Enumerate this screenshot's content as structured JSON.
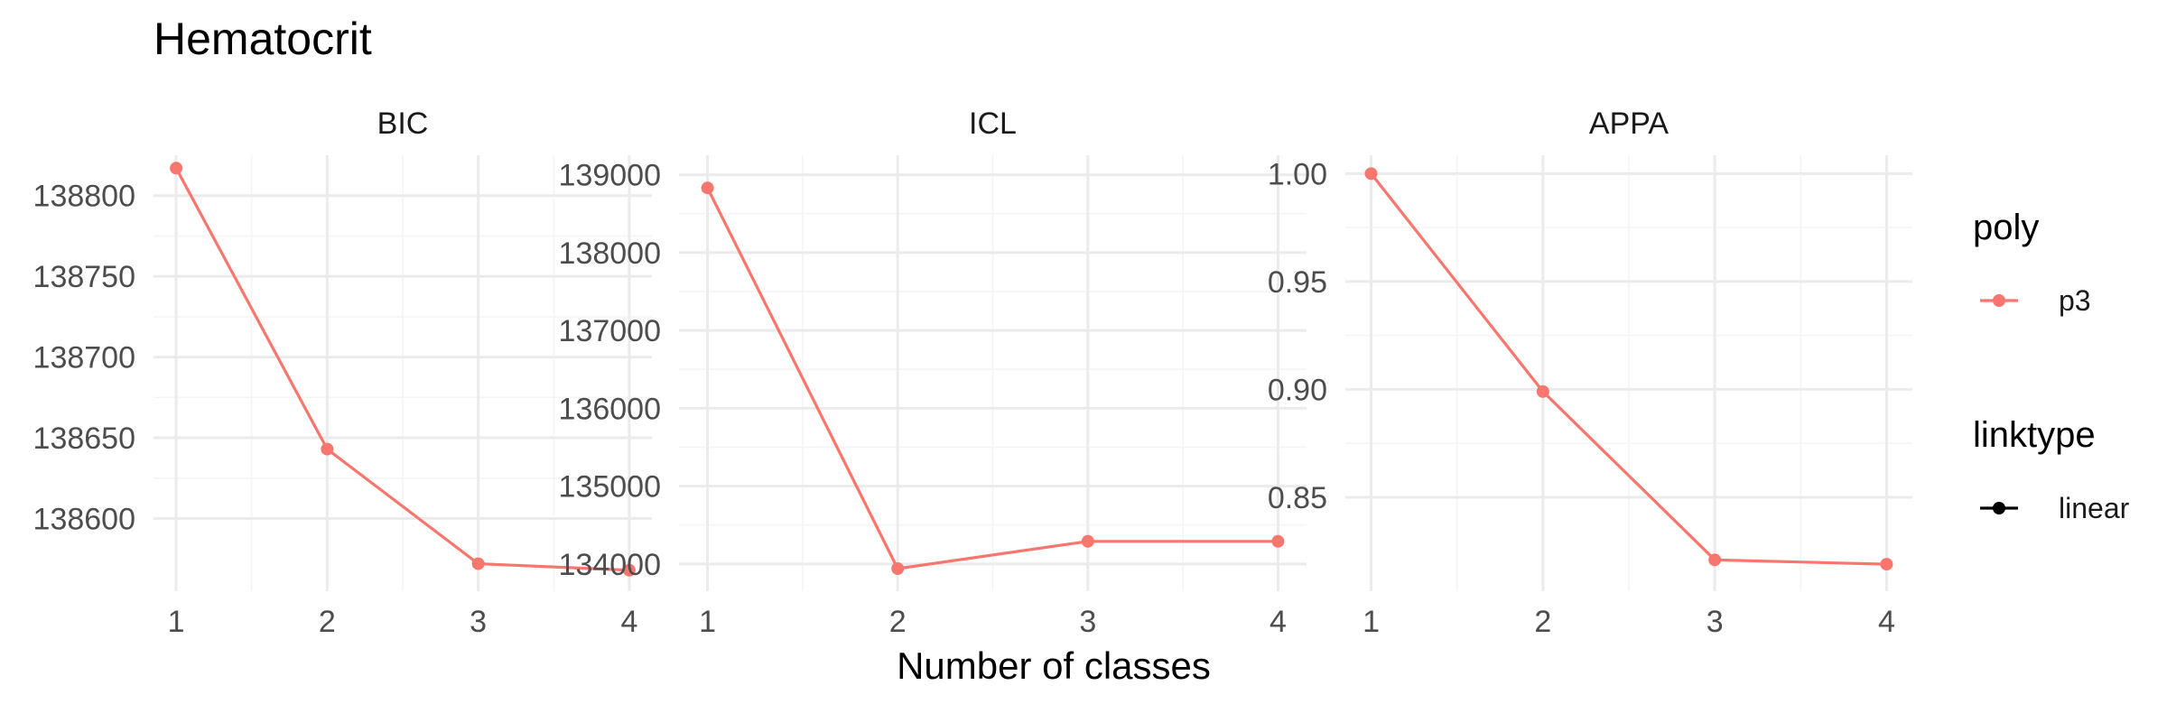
{
  "chart_data": {
    "type": "line",
    "title": "Hematocrit",
    "xlabel": "Number of classes",
    "x": [
      1,
      2,
      3,
      4
    ],
    "panels": [
      {
        "name": "BIC",
        "ylim": [
          138555,
          138825
        ],
        "yticks": [
          138600,
          138650,
          138700,
          138750,
          138800
        ],
        "tick_labels": [
          "138600",
          "138650",
          "138700",
          "138750",
          "138800"
        ],
        "series": [
          {
            "name": "p3",
            "values": [
              138817,
              138643,
              138572,
              138568
            ]
          }
        ]
      },
      {
        "name": "ICL",
        "ylim": [
          133650,
          139250
        ],
        "yticks": [
          134000,
          135000,
          136000,
          137000,
          138000,
          139000
        ],
        "tick_labels": [
          "134000",
          "135000",
          "136000",
          "137000",
          "138000",
          "139000"
        ],
        "series": [
          {
            "name": "p3",
            "values": [
              138830,
              133940,
              134290,
              134290
            ]
          }
        ]
      },
      {
        "name": "APPA",
        "ylim": [
          0.8065,
          1.0085
        ],
        "yticks": [
          0.85,
          0.9,
          0.95,
          1.0
        ],
        "tick_labels": [
          "0.85",
          "0.90",
          "0.95",
          "1.00"
        ],
        "series": [
          {
            "name": "p3",
            "values": [
              1.0,
              0.899,
              0.821,
              0.819
            ]
          }
        ]
      }
    ],
    "x_tick_labels": [
      "1",
      "2",
      "3",
      "4"
    ],
    "legend": {
      "position": "right",
      "groups": [
        {
          "title": "poly",
          "entries": [
            {
              "label": "p3",
              "color": "#F8766D"
            }
          ]
        },
        {
          "title": "linktype",
          "entries": [
            {
              "label": "linear",
              "color": "#000000"
            }
          ]
        }
      ]
    },
    "colors": {
      "series": "#F8766D",
      "grid": "#EBEBEB"
    },
    "grid": true
  }
}
